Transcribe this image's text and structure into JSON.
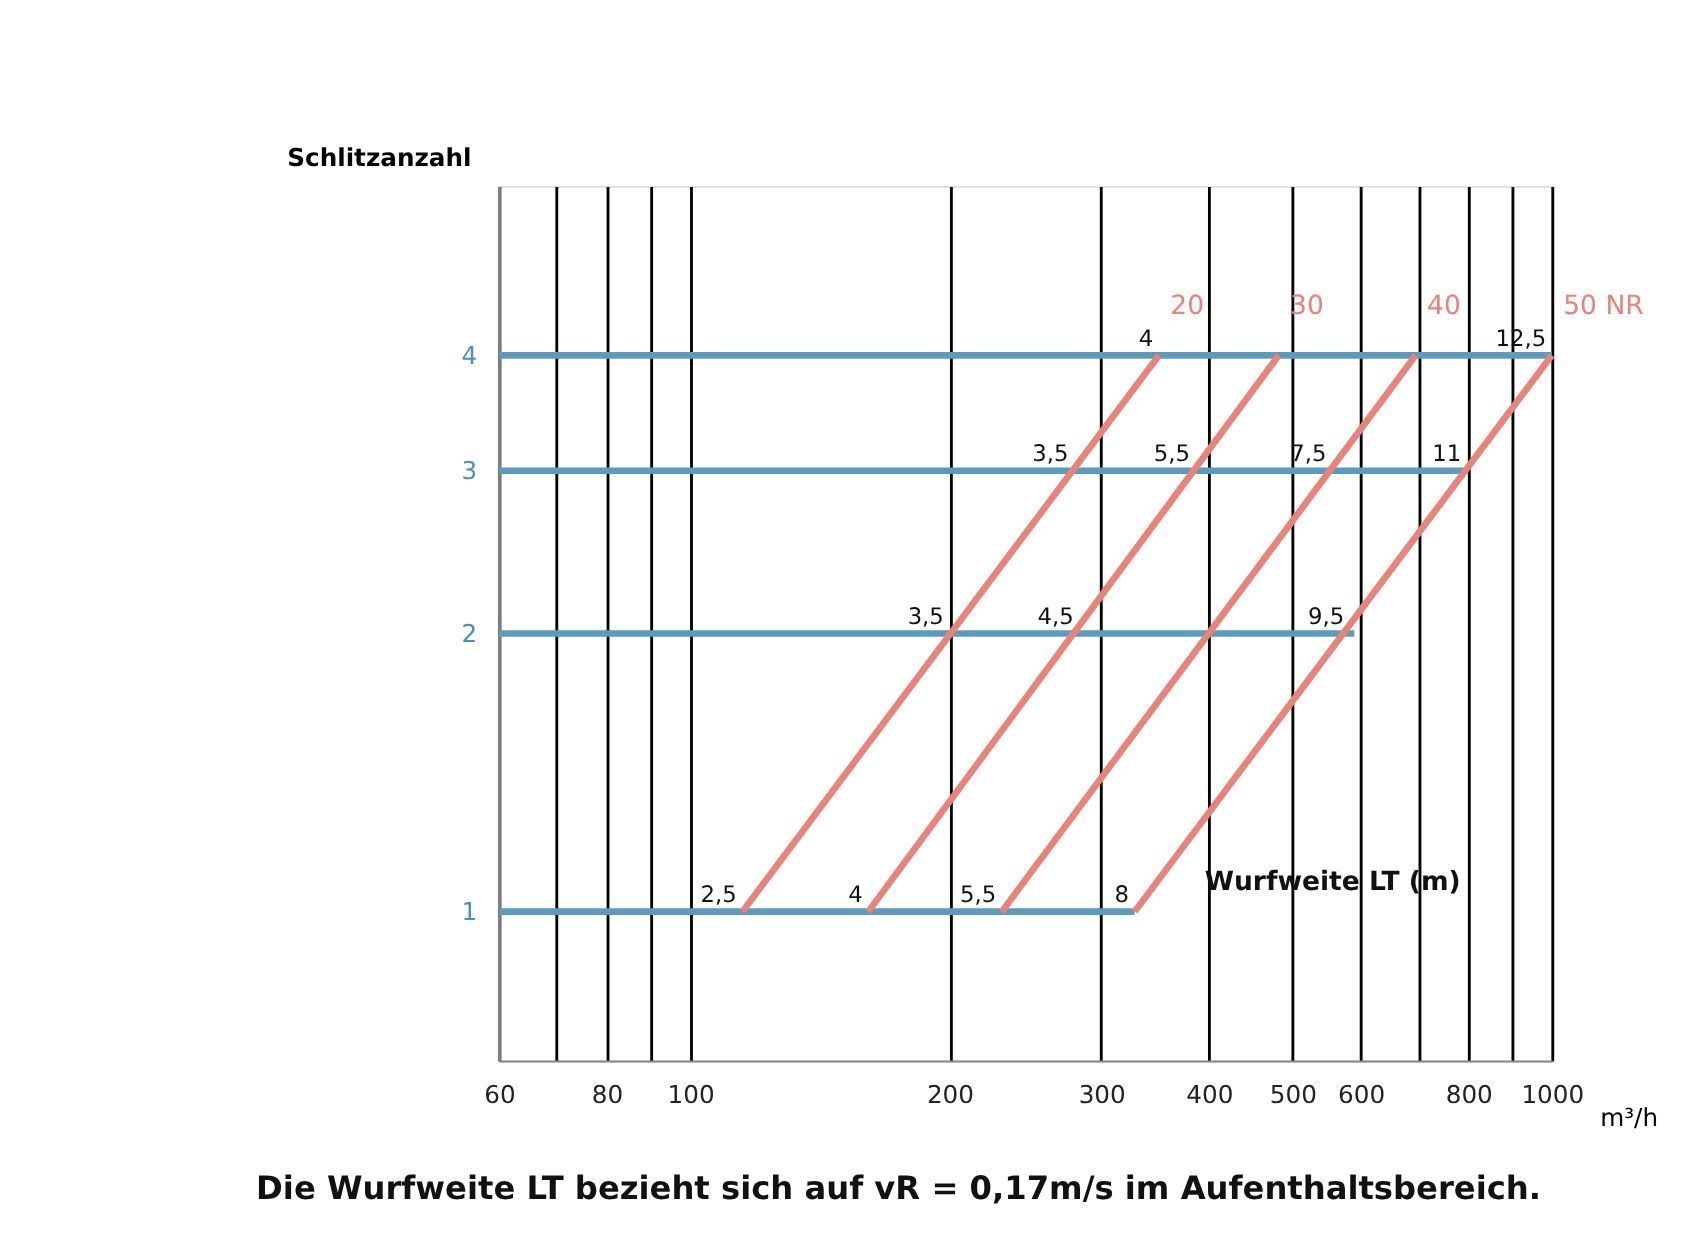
{
  "chart_data": {
    "type": "line",
    "xlabel": "m³/h",
    "ylabel": "Schlitzanzahl",
    "log": "xy",
    "xlim": [
      60,
      1000
    ],
    "ylim": [
      0.69,
      6.1
    ],
    "xticks": [
      60,
      {
        "value": 70,
        "label": null
      },
      80,
      {
        "value": 90,
        "label": null
      },
      100,
      200,
      300,
      400,
      500,
      600,
      {
        "value": 700,
        "label": null
      },
      800,
      {
        "value": 900,
        "label": null
      },
      1000
    ],
    "yticks": [
      1,
      2,
      3,
      4
    ],
    "grid": "x",
    "legend": false,
    "marker": "none",
    "line_style": "solid",
    "series": [
      {
        "color": "#5b9bbd",
        "x": [
          60,
          328
        ],
        "values": [
          1,
          1
        ]
      },
      {
        "color": "#5b9bbd",
        "x": [
          60,
          590
        ],
        "values": [
          2,
          2
        ]
      },
      {
        "color": "#5b9bbd",
        "x": [
          60,
          800
        ],
        "values": [
          3,
          3
        ]
      },
      {
        "color": "#5b9bbd",
        "x": [
          60,
          1000
        ],
        "values": [
          4,
          4
        ]
      },
      {
        "name": "20",
        "color": "#e8837a",
        "x": [
          115,
          350
        ],
        "values": [
          1,
          4
        ]
      },
      {
        "name": "30",
        "color": "#e8837a",
        "x": [
          161,
          482
        ],
        "values": [
          1,
          4
        ]
      },
      {
        "name": "40",
        "color": "#e8837a",
        "x": [
          230,
          695
        ],
        "values": [
          1,
          4
        ]
      },
      {
        "name": "50 NR",
        "color": "#e8837a",
        "x": [
          328,
          1000
        ],
        "values": [
          1,
          4
        ]
      }
    ],
    "annotations": [
      {
        "text": "2,5",
        "x": 115,
        "y": 1
      },
      {
        "text": "4",
        "x": 161,
        "y": 1
      },
      {
        "text": "5,5",
        "x": 230,
        "y": 1
      },
      {
        "text": "8",
        "x": 328,
        "y": 1
      },
      {
        "text": "3,5",
        "x": 200,
        "y": 2
      },
      {
        "text": "4,5",
        "x": 283,
        "y": 2
      },
      {
        "text": "9,5",
        "x": 583,
        "y": 2
      },
      {
        "text": "3,5",
        "x": 279,
        "y": 3
      },
      {
        "text": "5,5",
        "x": 386,
        "y": 3
      },
      {
        "text": "7,5",
        "x": 556,
        "y": 3
      },
      {
        "text": "11",
        "x": 797,
        "y": 3
      },
      {
        "text": "4",
        "x": 350,
        "y": 4
      },
      {
        "text": "12,5",
        "x": 1000,
        "y": 4
      },
      "Wurfweite LT (m)",
      "Die Wurfweite LT bezieht sich auf vR = 0,17m/s im Aufenthaltsbereich."
    ]
  }
}
